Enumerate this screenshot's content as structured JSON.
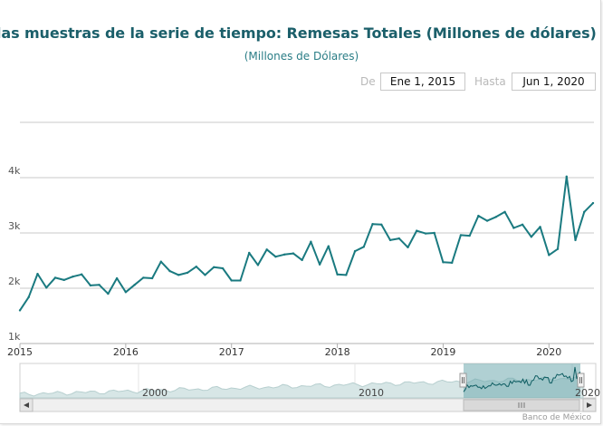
{
  "chart_data": {
    "type": "line",
    "title": "las muestras de la serie de tiempo:  Remesas Totales (Millones de dólares) , unidades: Mil",
    "subtitle": "(Millones de Dólares)",
    "x_start": "2015-01",
    "x_frequency": "monthly",
    "x_tick_labels": [
      "2015",
      "2016",
      "2017",
      "2018",
      "2019",
      "2020"
    ],
    "y_tick_labels": [
      "1k",
      "2k",
      "3k",
      "4k"
    ],
    "ylim": [
      1000,
      5000
    ],
    "grid": true,
    "legend": "none",
    "line_color": "#1a7a80",
    "series": [
      {
        "values": [
          1600,
          1840,
          2260,
          2010,
          2190,
          2150,
          2210,
          2250,
          2050,
          2060,
          1900,
          2180,
          1930,
          2060,
          2190,
          2180,
          2480,
          2310,
          2240,
          2280,
          2390,
          2240,
          2380,
          2360,
          2140,
          2140,
          2640,
          2420,
          2700,
          2570,
          2610,
          2630,
          2510,
          2840,
          2430,
          2760,
          2250,
          2240,
          2670,
          2750,
          3160,
          3150,
          2870,
          2900,
          2740,
          3040,
          2990,
          3000,
          2470,
          2460,
          2960,
          2950,
          3310,
          3220,
          3290,
          3380,
          3090,
          3150,
          2930,
          3110,
          2600,
          2710,
          4020,
          2870,
          3380,
          3540
        ]
      }
    ]
  },
  "range_selector": {
    "from_label": "De",
    "from_value": "Ene 1, 2015",
    "to_label": "Hasta",
    "to_value": "Jun 1, 2020"
  },
  "navigator": {
    "labels": [
      "2000",
      "2010",
      "2020"
    ]
  },
  "credits": "Banco de México"
}
